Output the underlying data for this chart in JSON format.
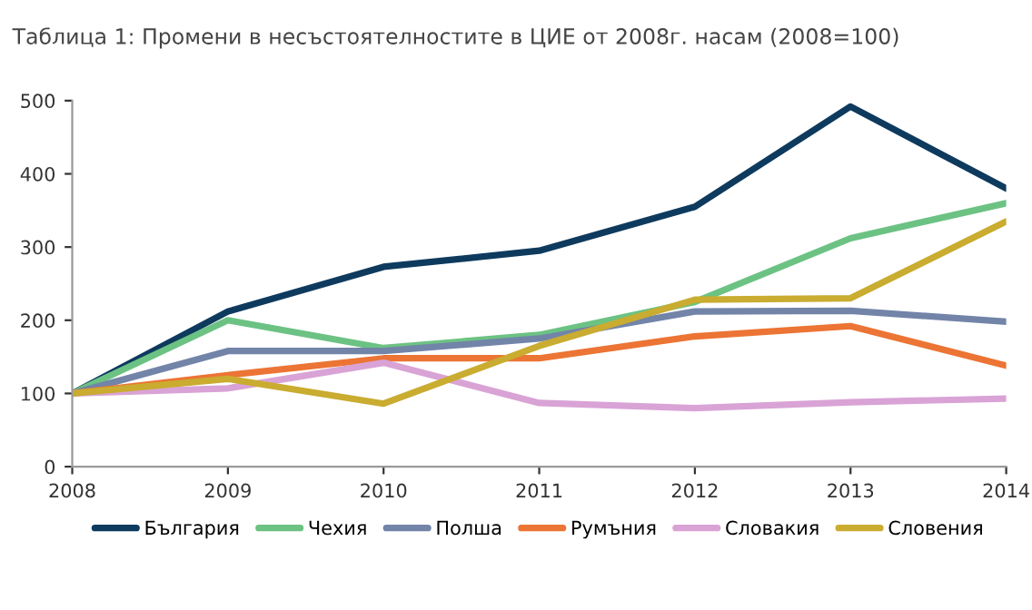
{
  "chart_data": {
    "type": "line",
    "title": "Таблица 1: Промени в несъстоятелностите в ЦИЕ от 2008г. насам (2008=100)",
    "x": [
      2008,
      2009,
      2010,
      2011,
      2012,
      2013,
      2014
    ],
    "xlim": [
      2008,
      2014
    ],
    "xticks": [
      2008,
      2009,
      2010,
      2011,
      2012,
      2013,
      2014
    ],
    "ylim": [
      0,
      500
    ],
    "yticks": [
      0,
      100,
      200,
      300,
      400,
      500
    ],
    "grid": false,
    "legend": "bottom",
    "marker": "none",
    "line_style": "solid",
    "series": [
      {
        "name": "България",
        "color": "#0e3a5e",
        "values": [
          100,
          212,
          273,
          295,
          355,
          492,
          380
        ]
      },
      {
        "name": "Чехия",
        "color": "#6cc283",
        "values": [
          100,
          200,
          162,
          180,
          225,
          312,
          360
        ]
      },
      {
        "name": "Полша",
        "color": "#7284a8",
        "values": [
          100,
          158,
          158,
          175,
          212,
          213,
          198
        ]
      },
      {
        "name": "Румъния",
        "color": "#ec7434",
        "values": [
          100,
          125,
          148,
          148,
          178,
          192,
          138
        ]
      },
      {
        "name": "Словакия",
        "color": "#d9a3d6",
        "values": [
          100,
          107,
          142,
          87,
          80,
          88,
          93
        ]
      },
      {
        "name": "Словения",
        "color": "#c9ac30",
        "values": [
          100,
          120,
          86,
          165,
          228,
          230,
          335
        ]
      }
    ]
  }
}
